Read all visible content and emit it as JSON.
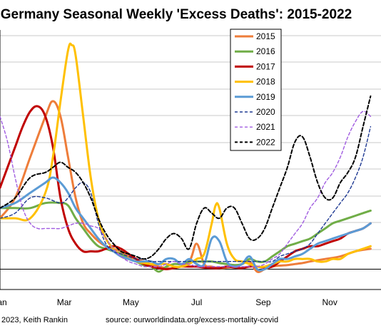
{
  "chart_data": {
    "type": "line",
    "title": "Germany Seasonal Weekly 'Excess Deaths': 2015-2022",
    "xlabel": "",
    "ylabel": "",
    "x_tick_labels": [
      "Jan",
      "Mar",
      "May",
      "Jul",
      "Sep",
      "Nov"
    ],
    "x_unit": "week of year",
    "xlim": [
      1,
      50
    ],
    "ylim": [
      -4,
      47
    ],
    "zero_line": true,
    "grid": "horizontal",
    "legend_position": "top-right",
    "series": [
      {
        "name": "2015",
        "color": "#ee7d3a",
        "style": "solid",
        "width": 3,
        "x": [
          1,
          3,
          5,
          7,
          8,
          9,
          10,
          11,
          12,
          13,
          14,
          15,
          16,
          17,
          18,
          19,
          20,
          22,
          24,
          26,
          27,
          28,
          29,
          30,
          31,
          32,
          33,
          34,
          35,
          36,
          37,
          38,
          39,
          40,
          41,
          42,
          44,
          46,
          48,
          50
        ],
        "y": [
          10,
          14,
          22,
          30,
          33,
          30,
          22,
          14,
          9,
          7,
          5.5,
          4.5,
          4,
          3.5,
          2.5,
          2,
          1.5,
          0.5,
          0.2,
          1.5,
          5,
          1,
          0.5,
          0.2,
          0.3,
          0.5,
          1,
          1.5,
          -0.5,
          0,
          0.5,
          0.7,
          0.8,
          1,
          1.2,
          1.5,
          2,
          2.5,
          3.5,
          4
        ]
      },
      {
        "name": "2016",
        "color": "#70ad47",
        "style": "solid",
        "width": 3,
        "x": [
          1,
          3,
          5,
          7,
          9,
          10,
          11,
          12,
          13,
          14,
          15,
          16,
          17,
          18,
          19,
          20,
          21,
          22,
          23,
          24,
          25,
          26,
          27,
          28,
          29,
          30,
          31,
          32,
          33,
          34,
          35,
          36,
          37,
          38,
          39,
          40,
          41,
          42,
          43,
          44,
          45,
          46,
          47,
          48,
          49,
          50
        ],
        "y": [
          12,
          12,
          12,
          13,
          13,
          12.5,
          10,
          8,
          6,
          4.5,
          4,
          3.5,
          3,
          2,
          1.5,
          0.8,
          0.5,
          -0.5,
          0.5,
          1,
          1,
          1.5,
          1.5,
          1.5,
          1.5,
          1.2,
          1,
          0.8,
          1,
          2,
          1.5,
          1.5,
          2.5,
          3.5,
          4.5,
          5,
          5.5,
          6,
          7,
          8,
          9,
          9.5,
          10,
          10.5,
          11,
          11.5
        ]
      },
      {
        "name": "2017",
        "color": "#c00000",
        "style": "solid",
        "width": 3,
        "x": [
          1,
          2,
          3,
          4,
          5,
          6,
          7,
          8,
          9,
          10,
          11,
          12,
          13,
          14,
          15,
          16,
          17,
          18,
          19,
          20,
          21,
          22,
          23,
          24,
          25,
          26,
          27,
          28,
          29,
          30,
          31,
          32,
          33,
          34,
          35,
          36,
          37,
          38,
          39,
          40,
          41,
          42,
          43,
          44,
          45,
          46,
          47,
          48,
          49,
          50
        ],
        "y": [
          16,
          20,
          24,
          28,
          31,
          32,
          30,
          24,
          14,
          8,
          5,
          3.5,
          3.5,
          3.5,
          4,
          4.5,
          4,
          3,
          2,
          1,
          0.5,
          0.2,
          0,
          0.2,
          0.5,
          0.5,
          0.5,
          0.3,
          0.2,
          0.2,
          0.5,
          0.3,
          0.2,
          0.5,
          0.5,
          0.3,
          0.5,
          1.5,
          2.5,
          3.5,
          4,
          4.5,
          4.5,
          5,
          5.5,
          6,
          7,
          7.5,
          8,
          9
        ]
      },
      {
        "name": "2018",
        "color": "#ffc000",
        "style": "solid",
        "width": 3,
        "x": [
          1,
          3,
          5,
          7,
          8,
          9,
          10,
          10.5,
          11,
          12,
          13,
          14,
          15,
          16,
          17,
          18,
          19,
          20,
          21,
          22,
          23,
          24,
          25,
          26,
          27,
          28,
          29,
          29.5,
          30,
          31,
          32,
          33,
          34,
          35,
          36,
          37,
          38,
          39,
          40,
          41,
          42,
          43,
          44,
          45,
          46,
          47,
          48,
          49,
          50
        ],
        "y": [
          10,
          10,
          10,
          15,
          22,
          33,
          43,
          44,
          42,
          30,
          18,
          10,
          6,
          4,
          2.5,
          2,
          1.5,
          1.2,
          1,
          1,
          1,
          0.5,
          0.5,
          1,
          2,
          3,
          9,
          12.5,
          12,
          5,
          2,
          1.5,
          1,
          0.5,
          0.5,
          1,
          1.5,
          1.5,
          2,
          2,
          2,
          1.5,
          1.5,
          2,
          2,
          3,
          3.5,
          4,
          4.5
        ]
      },
      {
        "name": "2019",
        "color": "#5b9bd5",
        "style": "solid",
        "width": 3,
        "x": [
          1,
          3,
          5,
          7,
          8,
          9,
          10,
          11,
          12,
          13,
          14,
          15,
          16,
          17,
          18,
          19,
          20,
          21,
          22,
          23,
          24,
          25,
          26,
          27,
          28,
          29,
          30,
          31,
          32,
          33,
          34,
          35,
          36,
          37,
          38,
          39,
          40,
          41,
          42,
          43,
          44,
          45,
          46,
          47,
          48,
          49,
          50
        ],
        "y": [
          12,
          13,
          15,
          17,
          18,
          17,
          15,
          12,
          10,
          8,
          6,
          4.5,
          3.5,
          2.5,
          2,
          1.5,
          1.5,
          1.5,
          1,
          2,
          2,
          1,
          2,
          1,
          1,
          6,
          5.5,
          1.5,
          0.5,
          1,
          2.5,
          0,
          0,
          1,
          2,
          2,
          2.5,
          3,
          4,
          5,
          5.5,
          6,
          6.5,
          7,
          7.5,
          8,
          9
        ]
      },
      {
        "name": "2020",
        "color": "#1f3a93",
        "style": "dash",
        "width": 1.4,
        "x": [
          1,
          3,
          5,
          7,
          9,
          10,
          11,
          12,
          13,
          14,
          15,
          16,
          17,
          18,
          19,
          20,
          21,
          22,
          23,
          24,
          25,
          26,
          27,
          28,
          29,
          30,
          31,
          32,
          33,
          34,
          35,
          36,
          37,
          38,
          39,
          40,
          41,
          42,
          43,
          44,
          45,
          46,
          47,
          48,
          49,
          50
        ],
        "y": [
          10,
          11,
          14,
          14,
          13,
          14,
          16,
          17,
          15,
          9,
          5,
          3.5,
          3,
          2.5,
          2,
          2,
          1.5,
          1.5,
          1.5,
          1.5,
          1.5,
          1.5,
          1.5,
          1.5,
          1.5,
          1.5,
          1.5,
          1.5,
          1.5,
          1.5,
          1.5,
          1.5,
          1.5,
          2.5,
          3,
          3.5,
          4,
          5,
          7,
          9,
          11,
          13,
          15,
          18,
          22,
          28
        ]
      },
      {
        "name": "2021",
        "color": "#a05ce0",
        "style": "dash",
        "width": 1.4,
        "x": [
          1,
          2,
          3,
          4,
          5,
          6,
          7,
          8,
          9,
          10,
          11,
          12,
          13,
          14,
          15,
          16,
          17,
          18,
          19,
          20,
          21,
          22,
          23,
          24,
          25,
          26,
          27,
          28,
          29,
          30,
          31,
          32,
          33,
          34,
          35,
          36,
          37,
          38,
          39,
          40,
          41,
          42,
          43,
          44,
          45,
          46,
          47,
          48,
          49,
          50
        ],
        "y": [
          30,
          25,
          18,
          12,
          9,
          8,
          8,
          8,
          8,
          8.5,
          9,
          9,
          8.5,
          8,
          6,
          4,
          2.5,
          1.5,
          1,
          0.5,
          0.5,
          0.5,
          1,
          1.5,
          1,
          1,
          0.5,
          0.5,
          0.5,
          0.5,
          0.5,
          0.5,
          0.5,
          0.5,
          0.5,
          1,
          2,
          3,
          5,
          7,
          9,
          12,
          14,
          17,
          19,
          22,
          26,
          29,
          31,
          30
        ]
      },
      {
        "name": "2022",
        "color": "#000000",
        "style": "dash",
        "width": 2,
        "x": [
          1,
          3,
          5,
          7,
          8,
          9,
          10,
          11,
          12,
          13,
          14,
          15,
          16,
          17,
          18,
          19,
          20,
          21,
          22,
          23,
          24,
          25,
          26,
          27,
          28,
          29,
          30,
          31,
          32,
          33,
          34,
          35,
          36,
          37,
          38,
          39,
          40,
          41,
          42,
          43,
          44,
          45,
          46,
          47,
          48,
          49,
          50
        ],
        "y": [
          12,
          14,
          18,
          19,
          20,
          21,
          20,
          19,
          17,
          14,
          10,
          7,
          5,
          3.5,
          3,
          2.5,
          2,
          2.5,
          4,
          6,
          7,
          6,
          4,
          9,
          12,
          11,
          10,
          12,
          12,
          9,
          6,
          6,
          8,
          12,
          16,
          20,
          25,
          26,
          22,
          17,
          14,
          14,
          17,
          19,
          22,
          28,
          34
        ]
      }
    ]
  }
}
